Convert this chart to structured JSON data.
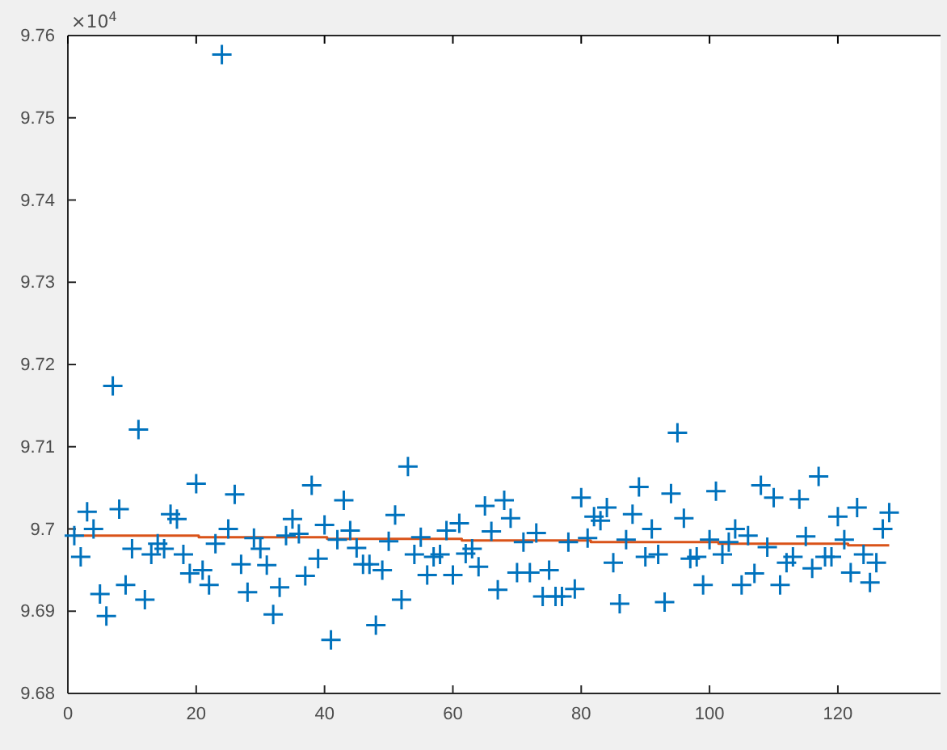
{
  "chart_data": {
    "type": "scatter",
    "grid": false,
    "annotations": [
      "×10$^{4}$"
    ],
    "xlim": [
      0,
      136
    ],
    "xticks": [
      0,
      20,
      40,
      60,
      80,
      100,
      120
    ],
    "ylim": [
      9.68,
      9.76
    ],
    "yticks": [
      9.68,
      9.69,
      9.7,
      9.71,
      9.72,
      9.73,
      9.74,
      9.75,
      9.76
    ],
    "series": [
      {
        "color": "#0072bd",
        "marker": "cross",
        "x": [
          1,
          2,
          3,
          4,
          5,
          6,
          7,
          8,
          9,
          10,
          11,
          12,
          13,
          14,
          15,
          16,
          17,
          18,
          19,
          20,
          21,
          22,
          23,
          24,
          25,
          26,
          27,
          28,
          29,
          30,
          31,
          32,
          33,
          34,
          35,
          36,
          37,
          38,
          39,
          40,
          41,
          42,
          43,
          44,
          45,
          46,
          47,
          48,
          49,
          50,
          51,
          52,
          53,
          54,
          55,
          56,
          57,
          58,
          59,
          60,
          61,
          62,
          63,
          64,
          65,
          66,
          67,
          68,
          69,
          70,
          71,
          72,
          73,
          74,
          75,
          76,
          77,
          78,
          79,
          80,
          81,
          82,
          83,
          84,
          85,
          86,
          87,
          88,
          89,
          90,
          91,
          92,
          93,
          94,
          95,
          96,
          97,
          98,
          99,
          100,
          101,
          102,
          103,
          104,
          105,
          106,
          107,
          108,
          109,
          110,
          111,
          112,
          113,
          114,
          115,
          116,
          117,
          118,
          119,
          120,
          121,
          122,
          123,
          124,
          125,
          126,
          127,
          128
        ],
        "values": [
          9.6992,
          9.6966,
          9.7021,
          9.7,
          9.6921,
          9.6894,
          9.7174,
          9.7024,
          9.6932,
          9.6976,
          9.7121,
          9.6914,
          9.6969,
          9.6982,
          9.6976,
          9.7018,
          9.7012,
          9.6969,
          9.6946,
          9.7055,
          9.695,
          9.6932,
          9.6982,
          9.7577,
          9.7,
          9.7042,
          9.6957,
          9.6923,
          9.6989,
          9.6976,
          9.6956,
          9.6896,
          9.6929,
          9.6992,
          9.7012,
          9.6994,
          9.6943,
          9.7053,
          9.6964,
          9.7005,
          9.6865,
          9.6987,
          9.7035,
          9.6998,
          9.6977,
          9.6957,
          9.6957,
          9.6883,
          9.695,
          9.6985,
          9.7017,
          9.6914,
          9.7076,
          9.6969,
          9.699,
          9.6944,
          9.6966,
          9.6969,
          9.6998,
          9.6944,
          9.7007,
          9.697,
          9.6976,
          9.6954,
          9.7028,
          9.6997,
          9.6926,
          9.7035,
          9.7013,
          9.6947,
          9.6984,
          9.6947,
          9.6995,
          9.6918,
          9.695,
          9.6918,
          9.6918,
          9.6984,
          9.6927,
          9.7038,
          9.6989,
          9.7015,
          9.701,
          9.7026,
          9.6959,
          9.6909,
          9.6987,
          9.7018,
          9.7051,
          9.6966,
          9.7,
          9.6969,
          9.6911,
          9.7043,
          9.7117,
          9.7013,
          9.6964,
          9.6966,
          9.6932,
          9.6987,
          9.7046,
          9.6969,
          9.6984,
          9.7,
          9.6932,
          9.6992,
          9.6946,
          9.7053,
          9.6978,
          9.7038,
          9.6932,
          9.6959,
          9.6966,
          9.7036,
          9.6991,
          9.6952,
          9.7064,
          9.6966,
          9.6966,
          9.7015,
          9.6987,
          9.6947,
          9.7026,
          9.6969,
          9.6935,
          9.6959,
          9.7,
          9.702
        ]
      },
      {
        "type": "step",
        "marker": "none",
        "color": "#d95319",
        "x": [
          1,
          20.4,
          40.4,
          61.4,
          81.5,
          101.4,
          121.6,
          128
        ],
        "values": [
          9.6992,
          9.699,
          9.6988,
          9.6986,
          9.6984,
          9.6982,
          9.698,
          9.698
        ]
      }
    ]
  }
}
